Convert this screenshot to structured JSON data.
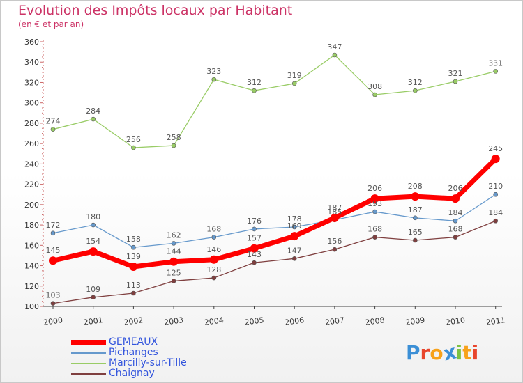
{
  "title": "Evolution des Impôts locaux par Habitant",
  "subtitle": "(en € et par an)",
  "logo": {
    "letters": [
      "P",
      "r",
      "o",
      "x",
      "i",
      "t",
      "i"
    ],
    "colors": [
      "#3b8fd6",
      "#e8452c",
      "#f7a21b",
      "#3b8fd6",
      "#7cc242",
      "#f7a21b",
      "#e8452c"
    ]
  },
  "chart_data": {
    "type": "line",
    "title": "Evolution des Impôts locaux par Habitant",
    "subtitle": "(en € et par an)",
    "xlabel": "",
    "ylabel": "",
    "x": [
      "2000",
      "2001",
      "2002",
      "2003",
      "2004",
      "2005",
      "2006",
      "2007",
      "2008",
      "2009",
      "2010",
      "2011"
    ],
    "ylim": [
      100,
      360
    ],
    "yticks": [
      100,
      120,
      140,
      160,
      180,
      200,
      220,
      240,
      260,
      280,
      300,
      320,
      340,
      360
    ],
    "grid": false,
    "legend_position": "bottom-left",
    "series": [
      {
        "name": "Marcilly-sur-Tille",
        "color": "#99cc66",
        "values": [
          274,
          284,
          256,
          258,
          323,
          312,
          319,
          347,
          308,
          312,
          321,
          331
        ],
        "emphasis": false
      },
      {
        "name": "Pichanges",
        "color": "#6699cc",
        "values": [
          172,
          180,
          158,
          162,
          168,
          176,
          178,
          185,
          193,
          187,
          184,
          210
        ],
        "emphasis": false
      },
      {
        "name": "Chaignay",
        "color": "#7f3f3f",
        "values": [
          103,
          109,
          113,
          125,
          128,
          143,
          147,
          156,
          168,
          165,
          168,
          184
        ],
        "emphasis": false
      },
      {
        "name": "GEMEAUX",
        "color": "#ff0000",
        "values": [
          145,
          154,
          139,
          144,
          146,
          157,
          169,
          187,
          206,
          208,
          206,
          245
        ],
        "emphasis": true
      }
    ],
    "legend_order": [
      "GEMEAUX",
      "Pichanges",
      "Marcilly-sur-Tille",
      "Chaignay"
    ],
    "legend_colors": {
      "GEMEAUX": "#ff0000",
      "Pichanges": "#6699cc",
      "Marcilly-sur-Tille": "#99cc66",
      "Chaignay": "#7f3f3f"
    },
    "legend_text_colors": {
      "GEMEAUX": "#3355dd",
      "Pichanges": "#3355dd",
      "Marcilly-sur-Tille": "#3355dd",
      "Chaignay": "#3355dd"
    }
  }
}
